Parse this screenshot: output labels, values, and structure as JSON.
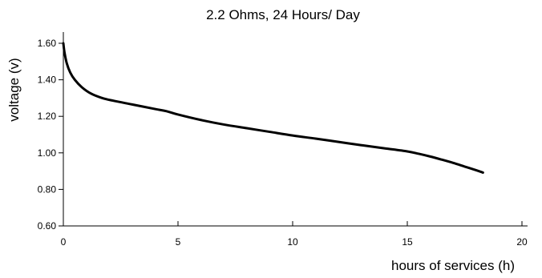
{
  "chart_data": {
    "type": "line",
    "title": "2.2 Ohms, 24 Hours/ Day",
    "xlabel": "hours of services (h)",
    "ylabel": "voltage (v)",
    "xlim": [
      0,
      20
    ],
    "ylim": [
      0.6,
      1.6
    ],
    "xticks": [
      "0",
      "5",
      "10",
      "15",
      "20"
    ],
    "yticks": [
      "0.60",
      "0.80",
      "1.00",
      "1.20",
      "1.40",
      "1.60"
    ],
    "grid": false,
    "line_color": "#000000",
    "series": [
      {
        "x": [
          0,
          0.05,
          0.15,
          0.3,
          0.5,
          0.8,
          1.2,
          1.7,
          2.2,
          3.0,
          4.0,
          4.5,
          5.0,
          6.0,
          7.0,
          8.0,
          9.0,
          10.0,
          11.0,
          12.0,
          13.0,
          14.0,
          15.0,
          15.5,
          16.0,
          16.5,
          17.0,
          17.5,
          18.0,
          18.3
        ],
        "y": [
          1.6,
          1.55,
          1.49,
          1.44,
          1.4,
          1.36,
          1.325,
          1.3,
          1.285,
          1.265,
          1.24,
          1.228,
          1.21,
          1.18,
          1.155,
          1.135,
          1.115,
          1.095,
          1.078,
          1.06,
          1.042,
          1.025,
          1.008,
          0.995,
          0.98,
          0.963,
          0.945,
          0.925,
          0.905,
          0.892
        ]
      }
    ]
  }
}
